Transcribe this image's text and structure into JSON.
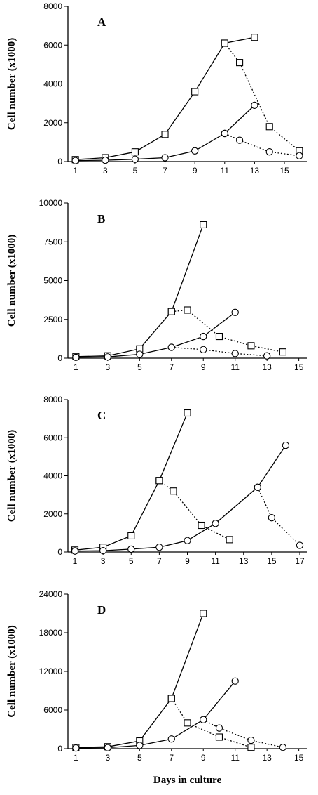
{
  "x_axis_label": "Days in culture",
  "chart_data": [
    {
      "type": "line",
      "panel": "A",
      "xlabel": "",
      "ylabel": "Cell number (x1000)",
      "xlim": [
        0.5,
        16.5
      ],
      "ylim": [
        0,
        8000
      ],
      "x_ticks": [
        1,
        3,
        5,
        7,
        9,
        11,
        13,
        15
      ],
      "y_ticks": [
        0,
        2000,
        4000,
        6000,
        8000
      ],
      "series": [
        {
          "marker": "square",
          "style": "solid",
          "points": [
            [
              1,
              100
            ],
            [
              3,
              200
            ],
            [
              5,
              500
            ],
            [
              7,
              1400
            ],
            [
              9,
              3600
            ],
            [
              11,
              6100
            ],
            [
              13,
              6400
            ]
          ]
        },
        {
          "marker": "square",
          "style": "dotted",
          "points": [
            [
              11,
              6100
            ],
            [
              12,
              5100
            ],
            [
              14,
              1800
            ],
            [
              16,
              550
            ]
          ]
        },
        {
          "marker": "circle",
          "style": "solid",
          "points": [
            [
              1,
              50
            ],
            [
              3,
              70
            ],
            [
              5,
              120
            ],
            [
              7,
              200
            ],
            [
              9,
              550
            ],
            [
              11,
              1450
            ],
            [
              13,
              2900
            ]
          ]
        },
        {
          "marker": "circle",
          "style": "dotted",
          "points": [
            [
              11,
              1450
            ],
            [
              12,
              1100
            ],
            [
              14,
              500
            ],
            [
              16,
              300
            ]
          ]
        }
      ]
    },
    {
      "type": "line",
      "panel": "B",
      "xlabel": "",
      "ylabel": "Cell number (x1000)",
      "xlim": [
        0.5,
        15.5
      ],
      "ylim": [
        0,
        10000
      ],
      "x_ticks": [
        1,
        3,
        5,
        7,
        9,
        11,
        13,
        15
      ],
      "y_ticks": [
        0,
        2500,
        5000,
        7500,
        10000
      ],
      "series": [
        {
          "marker": "square",
          "style": "solid",
          "points": [
            [
              1,
              100
            ],
            [
              3,
              150
            ],
            [
              5,
              600
            ],
            [
              7,
              3000
            ],
            [
              9,
              8600
            ]
          ]
        },
        {
          "marker": "square",
          "style": "dotted",
          "points": [
            [
              7,
              3000
            ],
            [
              8,
              3100
            ],
            [
              10,
              1400
            ],
            [
              12,
              800
            ],
            [
              14,
              400
            ]
          ]
        },
        {
          "marker": "circle",
          "style": "solid",
          "points": [
            [
              1,
              50
            ],
            [
              3,
              80
            ],
            [
              5,
              250
            ],
            [
              7,
              700
            ],
            [
              9,
              1400
            ],
            [
              11,
              2950
            ]
          ]
        },
        {
          "marker": "circle",
          "style": "dotted",
          "points": [
            [
              7,
              700
            ],
            [
              9,
              550
            ],
            [
              11,
              300
            ],
            [
              13,
              150
            ]
          ]
        }
      ]
    },
    {
      "type": "line",
      "panel": "C",
      "xlabel": "",
      "ylabel": "Cell number (x1000)",
      "xlim": [
        0.5,
        17.5
      ],
      "ylim": [
        0,
        8000
      ],
      "x_ticks": [
        1,
        3,
        5,
        7,
        9,
        11,
        13,
        15,
        17
      ],
      "y_ticks": [
        0,
        2000,
        4000,
        6000,
        8000
      ],
      "series": [
        {
          "marker": "square",
          "style": "solid",
          "points": [
            [
              1,
              100
            ],
            [
              3,
              250
            ],
            [
              5,
              850
            ],
            [
              7,
              3750
            ],
            [
              9,
              7300
            ]
          ]
        },
        {
          "marker": "square",
          "style": "dotted",
          "points": [
            [
              7,
              3750
            ],
            [
              8,
              3200
            ],
            [
              10,
              1400
            ],
            [
              12,
              650
            ]
          ]
        },
        {
          "marker": "circle",
          "style": "solid",
          "points": [
            [
              1,
              50
            ],
            [
              3,
              70
            ],
            [
              5,
              150
            ],
            [
              7,
              250
            ],
            [
              9,
              600
            ],
            [
              11,
              1500
            ],
            [
              14,
              3400
            ],
            [
              16,
              5600
            ]
          ]
        },
        {
          "marker": "circle",
          "style": "dotted",
          "points": [
            [
              14,
              3400
            ],
            [
              15,
              1800
            ],
            [
              17,
              350
            ]
          ]
        }
      ]
    },
    {
      "type": "line",
      "panel": "D",
      "xlabel": "Days in culture",
      "ylabel": "Cell number (x1000)",
      "xlim": [
        0.5,
        15.5
      ],
      "ylim": [
        0,
        24000
      ],
      "x_ticks": [
        1,
        3,
        5,
        7,
        9,
        11,
        13,
        15
      ],
      "y_ticks": [
        0,
        6000,
        12000,
        18000,
        24000
      ],
      "series": [
        {
          "marker": "square",
          "style": "solid",
          "points": [
            [
              1,
              200
            ],
            [
              3,
              300
            ],
            [
              5,
              1200
            ],
            [
              7,
              7800
            ],
            [
              9,
              21000
            ]
          ]
        },
        {
          "marker": "square",
          "style": "dotted",
          "points": [
            [
              7,
              7800
            ],
            [
              8,
              4000
            ],
            [
              10,
              1800
            ],
            [
              12,
              200
            ]
          ]
        },
        {
          "marker": "circle",
          "style": "solid",
          "points": [
            [
              1,
              100
            ],
            [
              3,
              150
            ],
            [
              5,
              500
            ],
            [
              7,
              1500
            ],
            [
              9,
              4500
            ],
            [
              11,
              10500
            ]
          ]
        },
        {
          "marker": "circle",
          "style": "dotted",
          "points": [
            [
              9,
              4500
            ],
            [
              10,
              3200
            ],
            [
              12,
              1300
            ],
            [
              14,
              200
            ]
          ]
        }
      ]
    }
  ]
}
